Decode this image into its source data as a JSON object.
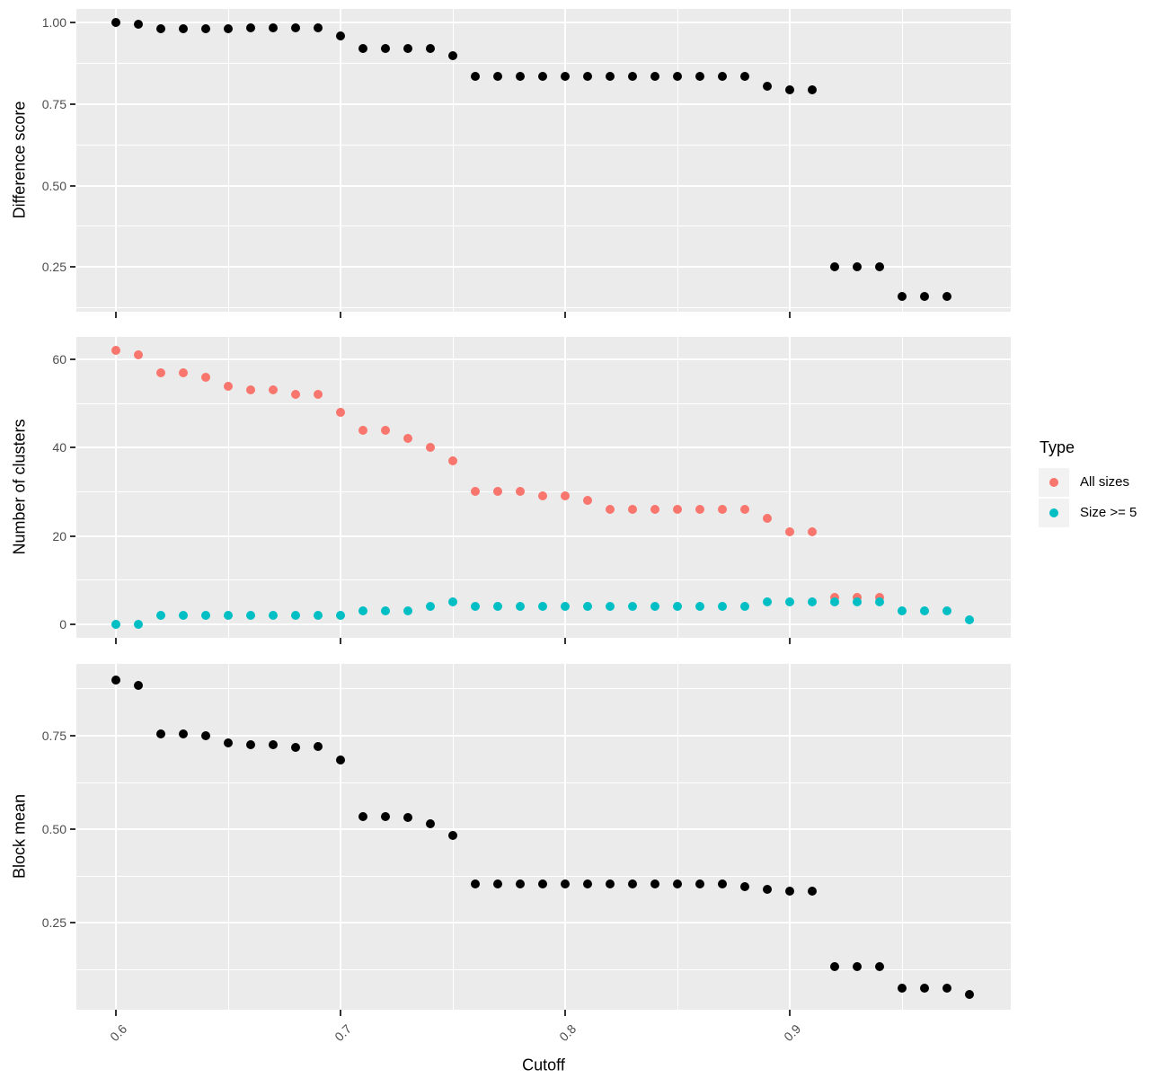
{
  "x_axis": {
    "label": "Cutoff",
    "ticks": [
      0.6,
      0.7,
      0.8,
      0.9
    ],
    "tick_labels": [
      "0.6",
      "0.7",
      "0.8",
      "0.9"
    ],
    "minor_ticks": [
      0.65,
      0.75,
      0.85,
      0.95
    ],
    "range": [
      0.5824,
      0.9984
    ]
  },
  "legend": {
    "title": "Type",
    "items": [
      {
        "label": "All sizes",
        "color": "#F8766D"
      },
      {
        "label": "Size >= 5",
        "color": "#00BFC4"
      }
    ]
  },
  "colors": {
    "panel_background": "#EBEBEB",
    "gridline": "#FFFFFF",
    "axis_text": "#4D4D4D",
    "axis_title": "#000000",
    "tick_mark": "#333333",
    "legend_key_background": "#F2F2F2",
    "point_black": "#000000",
    "point_red": "#F8766D",
    "point_teal": "#00BFC4"
  },
  "chart_data": [
    {
      "type": "scatter",
      "ylabel": "Difference score",
      "ylim": [
        0.113,
        1.042
      ],
      "yticks": [
        0.25,
        0.5,
        0.75,
        1.0
      ],
      "ytick_labels": [
        "0.25",
        "0.50",
        "0.75",
        "1.00"
      ],
      "y_minor": [
        0.125,
        0.375,
        0.625,
        0.875
      ],
      "grid": true,
      "series": [
        {
          "name": "Difference score",
          "color": "#000000",
          "x": [
            0.6,
            0.61,
            0.62,
            0.63,
            0.64,
            0.65,
            0.66,
            0.67,
            0.68,
            0.69,
            0.7,
            0.71,
            0.72,
            0.73,
            0.74,
            0.75,
            0.76,
            0.77,
            0.78,
            0.79,
            0.8,
            0.81,
            0.82,
            0.83,
            0.84,
            0.85,
            0.86,
            0.87,
            0.88,
            0.89,
            0.9,
            0.91,
            0.92,
            0.93,
            0.94,
            0.95,
            0.96,
            0.97
          ],
          "y": [
            1.0,
            0.995,
            0.98,
            0.98,
            0.98,
            0.98,
            0.983,
            0.983,
            0.983,
            0.983,
            0.96,
            0.92,
            0.92,
            0.92,
            0.92,
            0.9,
            0.835,
            0.835,
            0.835,
            0.835,
            0.835,
            0.835,
            0.835,
            0.835,
            0.835,
            0.835,
            0.835,
            0.835,
            0.835,
            0.805,
            0.795,
            0.795,
            0.25,
            0.25,
            0.25,
            0.16,
            0.16,
            0.16
          ]
        }
      ]
    },
    {
      "type": "scatter",
      "ylabel": "Number of clusters",
      "ylim": [
        -3.1,
        65.1
      ],
      "yticks": [
        0,
        20,
        40,
        60
      ],
      "ytick_labels": [
        "0",
        "20",
        "40",
        "60"
      ],
      "y_minor": [
        10,
        30,
        50
      ],
      "grid": true,
      "series": [
        {
          "name": "All sizes",
          "color": "#F8766D",
          "x": [
            0.6,
            0.61,
            0.62,
            0.63,
            0.64,
            0.65,
            0.66,
            0.67,
            0.68,
            0.69,
            0.7,
            0.71,
            0.72,
            0.73,
            0.74,
            0.75,
            0.76,
            0.77,
            0.78,
            0.79,
            0.8,
            0.81,
            0.82,
            0.83,
            0.84,
            0.85,
            0.86,
            0.87,
            0.88,
            0.89,
            0.9,
            0.91,
            0.92,
            0.93,
            0.94
          ],
          "y": [
            62,
            61,
            57,
            57,
            56,
            54,
            53,
            53,
            52,
            52,
            48,
            44,
            44,
            42,
            40,
            37,
            30,
            30,
            30,
            29,
            29,
            28,
            26,
            26,
            26,
            26,
            26,
            26,
            26,
            24,
            21,
            21,
            6,
            6,
            6
          ]
        },
        {
          "name": "Size >= 5",
          "color": "#00BFC4",
          "x": [
            0.6,
            0.61,
            0.62,
            0.63,
            0.64,
            0.65,
            0.66,
            0.67,
            0.68,
            0.69,
            0.7,
            0.71,
            0.72,
            0.73,
            0.74,
            0.75,
            0.76,
            0.77,
            0.78,
            0.79,
            0.8,
            0.81,
            0.82,
            0.83,
            0.84,
            0.85,
            0.86,
            0.87,
            0.88,
            0.89,
            0.9,
            0.91,
            0.92,
            0.93,
            0.94,
            0.95,
            0.96,
            0.97,
            0.98
          ],
          "y": [
            0,
            0,
            2,
            2,
            2,
            2,
            2,
            2,
            2,
            2,
            2,
            3,
            3,
            3,
            4,
            5,
            4,
            4,
            4,
            4,
            4,
            4,
            4,
            4,
            4,
            4,
            4,
            4,
            4,
            5,
            5,
            5,
            5,
            5,
            5,
            3,
            3,
            3,
            1
          ]
        }
      ]
    },
    {
      "type": "scatter",
      "ylabel": "Block mean",
      "ylim": [
        0.018,
        0.942
      ],
      "yticks": [
        0.25,
        0.5,
        0.75
      ],
      "ytick_labels": [
        "0.25",
        "0.50",
        "0.75"
      ],
      "y_minor": [
        0.125,
        0.375,
        0.625,
        0.875
      ],
      "grid": true,
      "series": [
        {
          "name": "Block mean",
          "color": "#000000",
          "x": [
            0.6,
            0.61,
            0.62,
            0.63,
            0.64,
            0.65,
            0.66,
            0.67,
            0.68,
            0.69,
            0.7,
            0.71,
            0.72,
            0.73,
            0.74,
            0.75,
            0.76,
            0.77,
            0.78,
            0.79,
            0.8,
            0.81,
            0.82,
            0.83,
            0.84,
            0.85,
            0.86,
            0.87,
            0.88,
            0.89,
            0.9,
            0.91,
            0.92,
            0.93,
            0.94,
            0.95,
            0.96,
            0.97,
            0.98
          ],
          "y": [
            0.9,
            0.885,
            0.755,
            0.755,
            0.75,
            0.732,
            0.725,
            0.725,
            0.72,
            0.722,
            0.685,
            0.535,
            0.535,
            0.532,
            0.514,
            0.483,
            0.355,
            0.355,
            0.355,
            0.355,
            0.355,
            0.355,
            0.355,
            0.355,
            0.355,
            0.355,
            0.355,
            0.355,
            0.348,
            0.34,
            0.335,
            0.335,
            0.133,
            0.133,
            0.133,
            0.075,
            0.075,
            0.075,
            0.06
          ]
        }
      ]
    }
  ]
}
